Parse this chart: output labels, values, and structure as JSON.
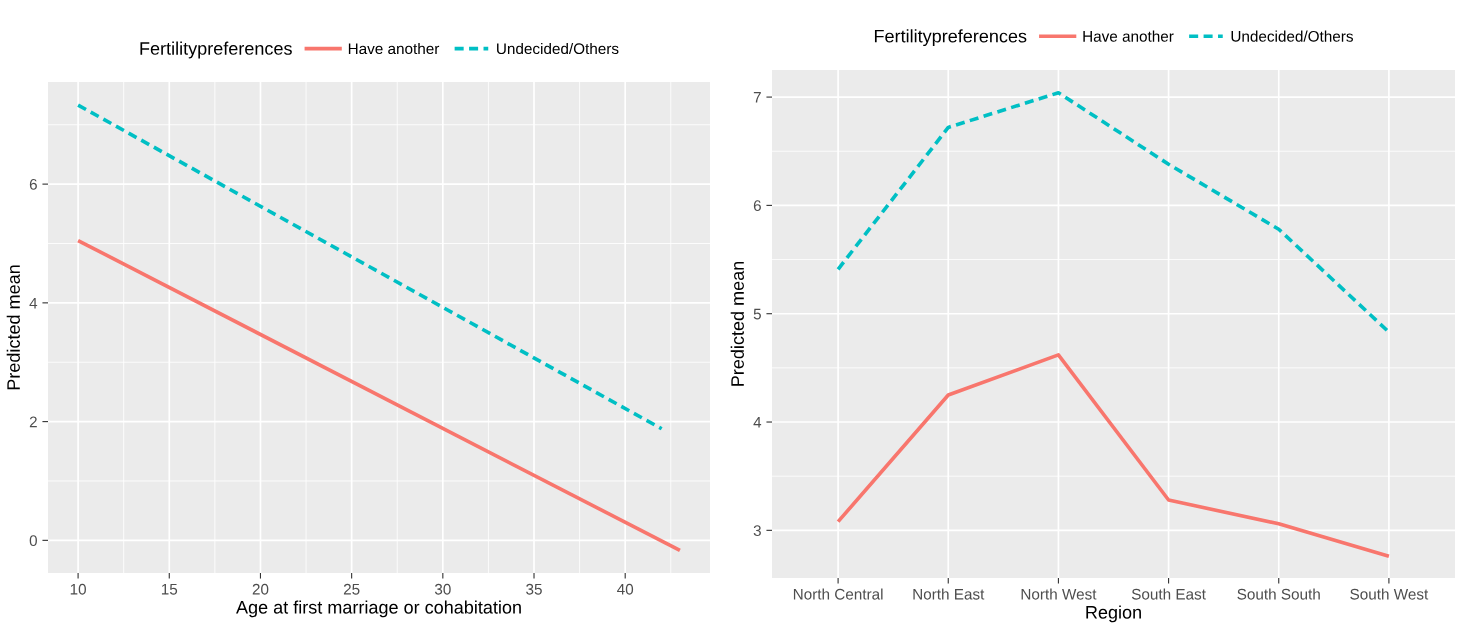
{
  "chart_data": [
    {
      "type": "line",
      "xlabel": "Age at first marriage or cohabitation",
      "ylabel": "Predicted mean",
      "legend_title": "Fertilitypreferences",
      "legend": "top",
      "grid": true,
      "xlim": [
        8.35,
        44.65
      ],
      "xticks": [
        10,
        15,
        20,
        25,
        30,
        35,
        40
      ],
      "ylim": [
        -0.55,
        7.72
      ],
      "yticks": [
        0,
        2,
        4,
        6
      ],
      "series": [
        {
          "name": "Have another",
          "color": "#f8766d",
          "line_style": "solid",
          "x": [
            10,
            43
          ],
          "values": [
            5.05,
            -0.17
          ]
        },
        {
          "name": "Undecided/Others",
          "color": "#00bfc4",
          "line_style": "dashed",
          "x": [
            10,
            42
          ],
          "values": [
            7.33,
            1.88
          ]
        }
      ]
    },
    {
      "type": "line",
      "xlabel": "Region",
      "ylabel": "Predicted mean",
      "legend_title": "Fertilitypreferences",
      "legend": "top",
      "grid": true,
      "categories": [
        "North Central",
        "North East",
        "North West",
        "South East",
        "South South",
        "South West"
      ],
      "ylim": [
        2.56,
        7.25
      ],
      "yticks": [
        3,
        4,
        5,
        6,
        7
      ],
      "series": [
        {
          "name": "Have another",
          "color": "#f8766d",
          "line_style": "solid",
          "values": [
            3.08,
            4.25,
            4.62,
            3.28,
            3.06,
            2.76
          ]
        },
        {
          "name": "Undecided/Others",
          "color": "#00bfc4",
          "line_style": "dashed",
          "values": [
            5.41,
            6.72,
            7.04,
            6.38,
            5.78,
            4.83
          ]
        }
      ]
    }
  ]
}
